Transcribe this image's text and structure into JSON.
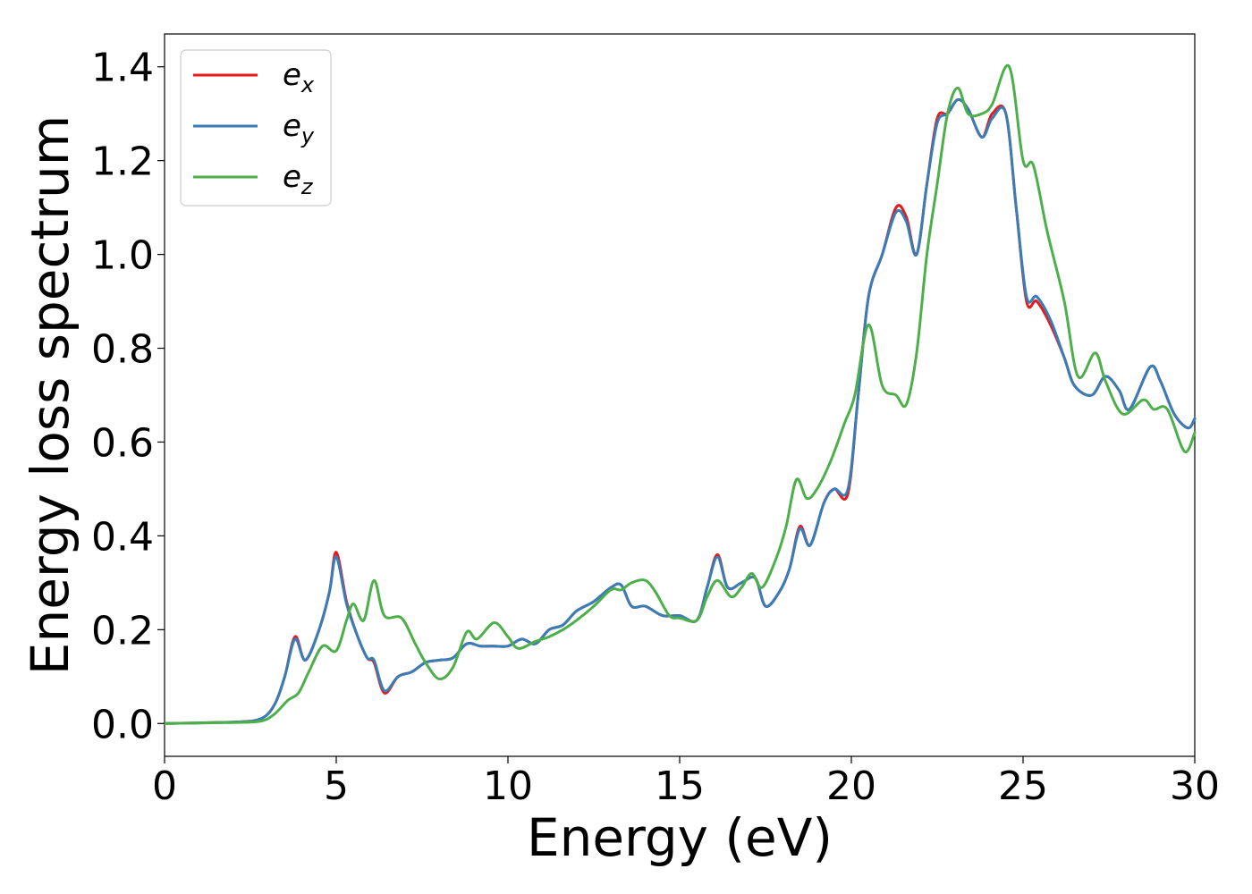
{
  "chart_data": {
    "type": "line",
    "xlabel": "Energy (eV)",
    "ylabel": "Energy loss spectrum",
    "xlim": [
      0,
      30
    ],
    "ylim": [
      -0.07,
      1.47
    ],
    "xticks": [
      0,
      5,
      10,
      15,
      20,
      25,
      30
    ],
    "yticks": [
      0.0,
      0.2,
      0.4,
      0.6,
      0.8,
      1.0,
      1.2,
      1.4
    ],
    "xtick_labels": [
      "0",
      "5",
      "10",
      "15",
      "20",
      "25",
      "30"
    ],
    "ytick_labels": [
      "0.0",
      "0.2",
      "0.4",
      "0.6",
      "0.8",
      "1.0",
      "1.2",
      "1.4"
    ],
    "grid": false,
    "legend_position": "top-left",
    "series": [
      {
        "name": "e_x",
        "label_base": "e",
        "label_sub": "x",
        "color": "#e41a1c",
        "points": [
          [
            0,
            0.0
          ],
          [
            2.0,
            0.003
          ],
          [
            2.8,
            0.01
          ],
          [
            3.2,
            0.04
          ],
          [
            3.5,
            0.1
          ],
          [
            3.8,
            0.185
          ],
          [
            4.1,
            0.135
          ],
          [
            4.5,
            0.2
          ],
          [
            4.8,
            0.28
          ],
          [
            5.0,
            0.365
          ],
          [
            5.3,
            0.26
          ],
          [
            5.6,
            0.19
          ],
          [
            5.9,
            0.14
          ],
          [
            6.1,
            0.13
          ],
          [
            6.4,
            0.065
          ],
          [
            6.8,
            0.1
          ],
          [
            7.2,
            0.11
          ],
          [
            7.6,
            0.13
          ],
          [
            8.0,
            0.135
          ],
          [
            8.4,
            0.14
          ],
          [
            8.8,
            0.17
          ],
          [
            9.2,
            0.165
          ],
          [
            9.6,
            0.165
          ],
          [
            10.0,
            0.165
          ],
          [
            10.4,
            0.18
          ],
          [
            10.8,
            0.17
          ],
          [
            11.2,
            0.2
          ],
          [
            11.6,
            0.21
          ],
          [
            12.0,
            0.24
          ],
          [
            12.5,
            0.26
          ],
          [
            13.0,
            0.29
          ],
          [
            13.3,
            0.295
          ],
          [
            13.6,
            0.25
          ],
          [
            14.0,
            0.25
          ],
          [
            14.5,
            0.23
          ],
          [
            15.0,
            0.23
          ],
          [
            15.5,
            0.22
          ],
          [
            15.8,
            0.29
          ],
          [
            16.1,
            0.36
          ],
          [
            16.4,
            0.29
          ],
          [
            16.8,
            0.3
          ],
          [
            17.2,
            0.31
          ],
          [
            17.5,
            0.25
          ],
          [
            17.9,
            0.28
          ],
          [
            18.2,
            0.33
          ],
          [
            18.5,
            0.42
          ],
          [
            18.8,
            0.38
          ],
          [
            19.2,
            0.47
          ],
          [
            19.5,
            0.5
          ],
          [
            19.9,
            0.49
          ],
          [
            20.2,
            0.7
          ],
          [
            20.5,
            0.91
          ],
          [
            20.9,
            1.0
          ],
          [
            21.3,
            1.1
          ],
          [
            21.6,
            1.08
          ],
          [
            21.9,
            1.0
          ],
          [
            22.2,
            1.15
          ],
          [
            22.5,
            1.29
          ],
          [
            22.8,
            1.3
          ],
          [
            23.1,
            1.33
          ],
          [
            23.4,
            1.31
          ],
          [
            23.8,
            1.25
          ],
          [
            24.1,
            1.3
          ],
          [
            24.5,
            1.3
          ],
          [
            24.8,
            1.1
          ],
          [
            25.1,
            0.9
          ],
          [
            25.4,
            0.9
          ],
          [
            25.8,
            0.85
          ],
          [
            26.2,
            0.78
          ],
          [
            26.5,
            0.72
          ],
          [
            27.0,
            0.7
          ],
          [
            27.4,
            0.74
          ],
          [
            27.8,
            0.71
          ],
          [
            28.1,
            0.67
          ],
          [
            28.7,
            0.76
          ],
          [
            29.0,
            0.73
          ],
          [
            29.4,
            0.66
          ],
          [
            29.8,
            0.63
          ],
          [
            30.0,
            0.65
          ]
        ]
      },
      {
        "name": "e_y",
        "label_base": "e",
        "label_sub": "y",
        "color": "#377eb8",
        "points": [
          [
            0,
            0.0
          ],
          [
            2.0,
            0.003
          ],
          [
            2.8,
            0.01
          ],
          [
            3.2,
            0.04
          ],
          [
            3.5,
            0.1
          ],
          [
            3.8,
            0.18
          ],
          [
            4.1,
            0.135
          ],
          [
            4.5,
            0.2
          ],
          [
            4.8,
            0.28
          ],
          [
            5.0,
            0.355
          ],
          [
            5.3,
            0.255
          ],
          [
            5.6,
            0.19
          ],
          [
            5.9,
            0.14
          ],
          [
            6.1,
            0.135
          ],
          [
            6.4,
            0.07
          ],
          [
            6.8,
            0.1
          ],
          [
            7.2,
            0.11
          ],
          [
            7.6,
            0.13
          ],
          [
            8.0,
            0.135
          ],
          [
            8.4,
            0.14
          ],
          [
            8.8,
            0.17
          ],
          [
            9.2,
            0.165
          ],
          [
            9.6,
            0.165
          ],
          [
            10.0,
            0.165
          ],
          [
            10.4,
            0.18
          ],
          [
            10.8,
            0.17
          ],
          [
            11.2,
            0.2
          ],
          [
            11.6,
            0.21
          ],
          [
            12.0,
            0.24
          ],
          [
            12.5,
            0.26
          ],
          [
            13.0,
            0.29
          ],
          [
            13.3,
            0.295
          ],
          [
            13.6,
            0.25
          ],
          [
            14.0,
            0.25
          ],
          [
            14.5,
            0.23
          ],
          [
            15.0,
            0.23
          ],
          [
            15.5,
            0.22
          ],
          [
            15.8,
            0.29
          ],
          [
            16.1,
            0.355
          ],
          [
            16.4,
            0.29
          ],
          [
            16.8,
            0.3
          ],
          [
            17.2,
            0.31
          ],
          [
            17.5,
            0.25
          ],
          [
            17.9,
            0.28
          ],
          [
            18.2,
            0.33
          ],
          [
            18.5,
            0.415
          ],
          [
            18.8,
            0.38
          ],
          [
            19.2,
            0.47
          ],
          [
            19.5,
            0.5
          ],
          [
            19.9,
            0.5
          ],
          [
            20.2,
            0.7
          ],
          [
            20.5,
            0.91
          ],
          [
            20.9,
            1.0
          ],
          [
            21.3,
            1.09
          ],
          [
            21.6,
            1.07
          ],
          [
            21.9,
            1.0
          ],
          [
            22.2,
            1.15
          ],
          [
            22.5,
            1.28
          ],
          [
            22.8,
            1.3
          ],
          [
            23.1,
            1.33
          ],
          [
            23.4,
            1.31
          ],
          [
            23.8,
            1.25
          ],
          [
            24.1,
            1.29
          ],
          [
            24.5,
            1.3
          ],
          [
            24.8,
            1.1
          ],
          [
            25.1,
            0.91
          ],
          [
            25.4,
            0.91
          ],
          [
            25.8,
            0.86
          ],
          [
            26.2,
            0.78
          ],
          [
            26.5,
            0.72
          ],
          [
            27.0,
            0.7
          ],
          [
            27.4,
            0.74
          ],
          [
            27.8,
            0.71
          ],
          [
            28.1,
            0.67
          ],
          [
            28.7,
            0.76
          ],
          [
            29.0,
            0.73
          ],
          [
            29.4,
            0.66
          ],
          [
            29.8,
            0.63
          ],
          [
            30.0,
            0.65
          ]
        ]
      },
      {
        "name": "e_z",
        "label_base": "e",
        "label_sub": "z",
        "color": "#4daf4a",
        "points": [
          [
            0,
            0.0
          ],
          [
            2.0,
            0.002
          ],
          [
            2.8,
            0.005
          ],
          [
            3.2,
            0.02
          ],
          [
            3.6,
            0.05
          ],
          [
            3.9,
            0.065
          ],
          [
            4.2,
            0.11
          ],
          [
            4.6,
            0.165
          ],
          [
            5.0,
            0.155
          ],
          [
            5.3,
            0.22
          ],
          [
            5.5,
            0.255
          ],
          [
            5.8,
            0.22
          ],
          [
            6.1,
            0.305
          ],
          [
            6.4,
            0.23
          ],
          [
            6.9,
            0.225
          ],
          [
            7.3,
            0.17
          ],
          [
            7.6,
            0.13
          ],
          [
            8.0,
            0.095
          ],
          [
            8.4,
            0.12
          ],
          [
            8.8,
            0.195
          ],
          [
            9.1,
            0.18
          ],
          [
            9.6,
            0.215
          ],
          [
            10.0,
            0.185
          ],
          [
            10.3,
            0.16
          ],
          [
            10.8,
            0.175
          ],
          [
            11.2,
            0.185
          ],
          [
            11.6,
            0.2
          ],
          [
            12.0,
            0.22
          ],
          [
            12.5,
            0.25
          ],
          [
            13.0,
            0.285
          ],
          [
            13.3,
            0.285
          ],
          [
            13.6,
            0.3
          ],
          [
            14.0,
            0.305
          ],
          [
            14.3,
            0.28
          ],
          [
            14.7,
            0.23
          ],
          [
            15.0,
            0.225
          ],
          [
            15.5,
            0.22
          ],
          [
            15.8,
            0.27
          ],
          [
            16.1,
            0.305
          ],
          [
            16.5,
            0.27
          ],
          [
            16.8,
            0.29
          ],
          [
            17.1,
            0.32
          ],
          [
            17.4,
            0.29
          ],
          [
            17.8,
            0.35
          ],
          [
            18.1,
            0.42
          ],
          [
            18.4,
            0.52
          ],
          [
            18.7,
            0.48
          ],
          [
            19.0,
            0.5
          ],
          [
            19.4,
            0.56
          ],
          [
            19.8,
            0.64
          ],
          [
            20.1,
            0.7
          ],
          [
            20.5,
            0.85
          ],
          [
            20.9,
            0.72
          ],
          [
            21.3,
            0.7
          ],
          [
            21.6,
            0.68
          ],
          [
            21.9,
            0.79
          ],
          [
            22.2,
            1.0
          ],
          [
            22.5,
            1.15
          ],
          [
            22.8,
            1.3
          ],
          [
            23.1,
            1.355
          ],
          [
            23.4,
            1.3
          ],
          [
            23.8,
            1.3
          ],
          [
            24.1,
            1.32
          ],
          [
            24.6,
            1.4
          ],
          [
            25.0,
            1.2
          ],
          [
            25.3,
            1.19
          ],
          [
            25.7,
            1.05
          ],
          [
            26.2,
            0.9
          ],
          [
            26.6,
            0.74
          ],
          [
            27.1,
            0.79
          ],
          [
            27.4,
            0.73
          ],
          [
            27.9,
            0.66
          ],
          [
            28.5,
            0.69
          ],
          [
            28.8,
            0.67
          ],
          [
            29.2,
            0.67
          ],
          [
            29.7,
            0.58
          ],
          [
            30.0,
            0.62
          ]
        ]
      }
    ]
  }
}
